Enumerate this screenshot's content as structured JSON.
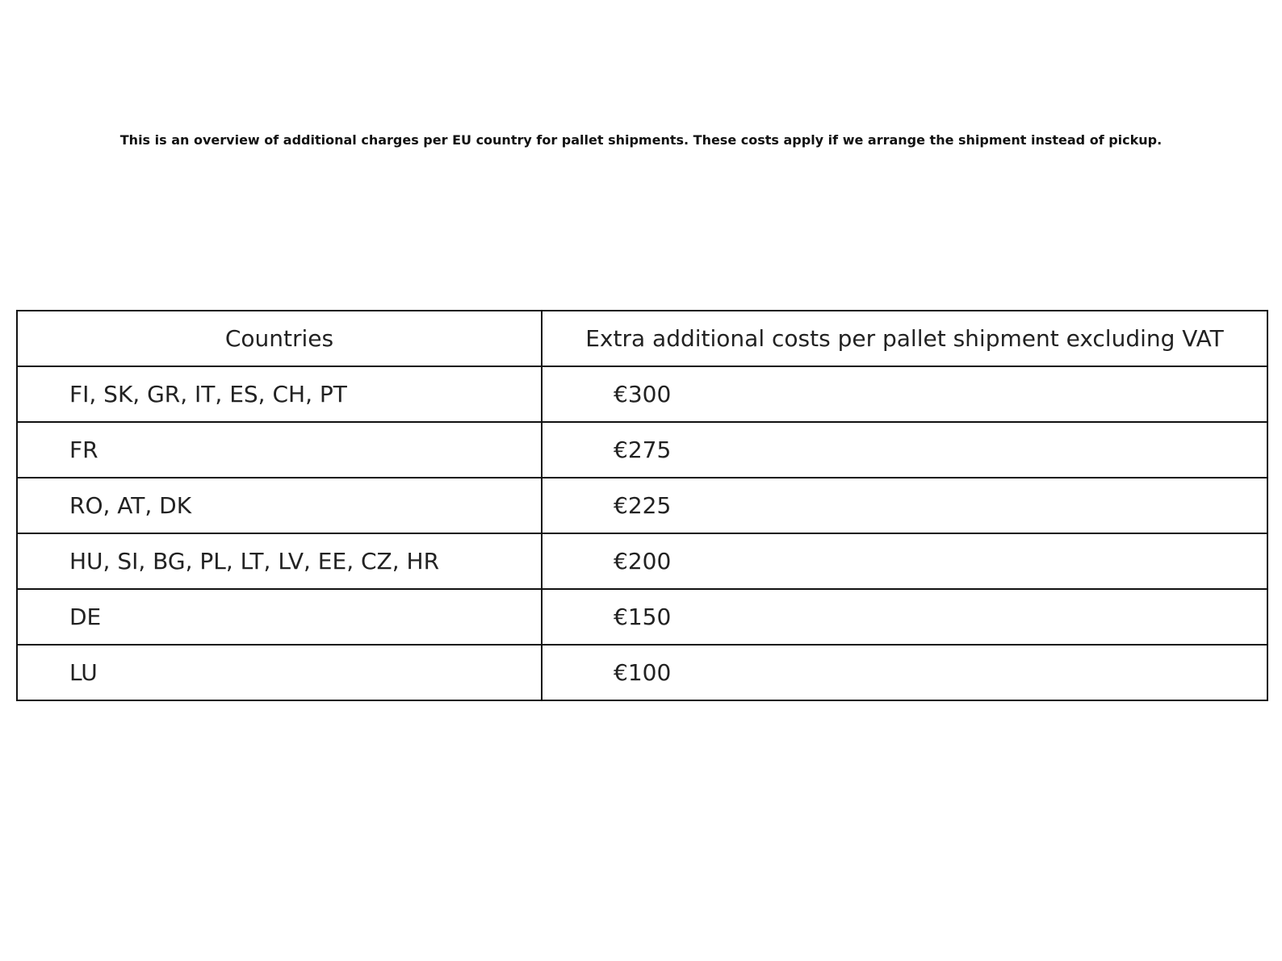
{
  "intro": "This is an overview of additional charges per EU country for pallet shipments. These costs apply if we arrange the shipment instead of pickup.",
  "table": {
    "headers": [
      "Countries",
      "Extra additional costs per pallet shipment excluding VAT"
    ],
    "rows": [
      {
        "countries": "FI, SK, GR, IT, ES, CH, PT",
        "cost": "€300"
      },
      {
        "countries": "FR",
        "cost": "€275"
      },
      {
        "countries": "RO, AT, DK",
        "cost": "€225"
      },
      {
        "countries": "HU, SI, BG, PL, LT, LV, EE, CZ, HR",
        "cost": "€200"
      },
      {
        "countries": "DE",
        "cost": "€150"
      },
      {
        "countries": "LU",
        "cost": "€100"
      }
    ]
  }
}
